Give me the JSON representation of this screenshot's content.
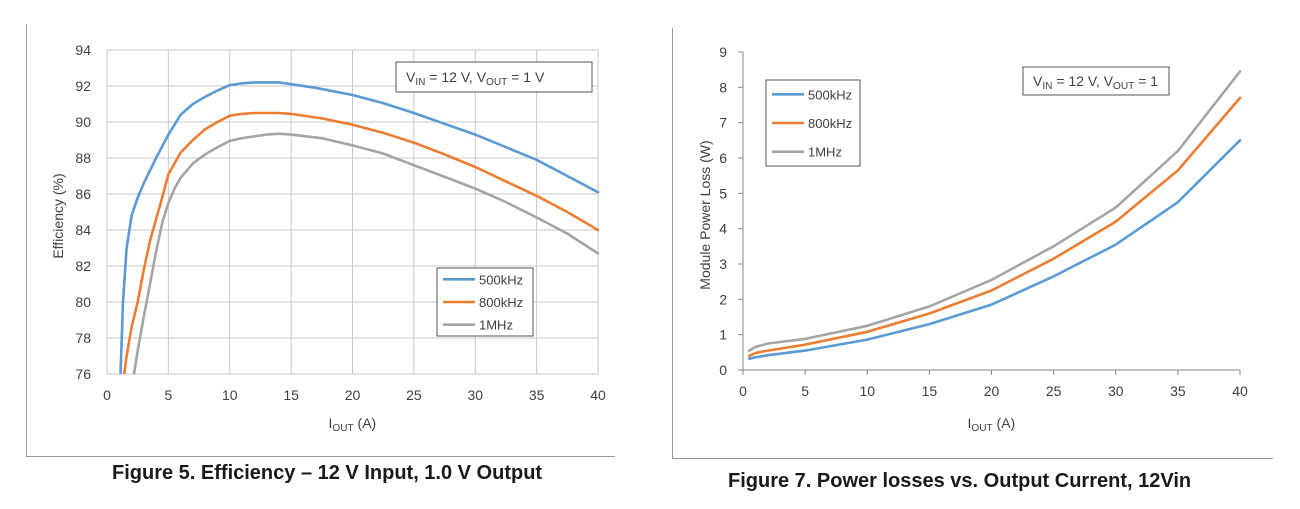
{
  "colors": {
    "series_500khz": "#5b9bd5",
    "series_800khz": "#ed7d31",
    "series_1mhz": "#a5a5a5",
    "grid": "#c8c8c8",
    "axis": "#868686",
    "text": "#404040"
  },
  "chart_data": [
    {
      "type": "line",
      "title": "",
      "caption": "Figure 5. Efficiency – 12 V Input, 1.0 V Output",
      "annotation": {
        "v": "V",
        "v_sub": "IN",
        "mid": " = 12 V, ",
        "v2": "V",
        "v2_sub": "OUT",
        "end": " = 1 V"
      },
      "xlabel": {
        "main": "I",
        "sub": "OUT",
        "unit": " (A)"
      },
      "ylabel": "Efficiency (%)",
      "xlim": [
        0,
        40
      ],
      "ylim": [
        76,
        94
      ],
      "xticks": [
        "0",
        "5",
        "10",
        "15",
        "20",
        "25",
        "30",
        "35",
        "40"
      ],
      "yticks": [
        "76",
        "78",
        "80",
        "82",
        "84",
        "86",
        "88",
        "90",
        "92",
        "94"
      ],
      "grid": true,
      "legend_position": "bottom-right",
      "series": [
        {
          "name": "500kHz",
          "x": [
            1.1,
            1.3,
            1.6,
            2.0,
            2.5,
            3.0,
            4.0,
            5.0,
            6.0,
            7.0,
            8.0,
            9.0,
            10.0,
            11.0,
            12.0,
            13.0,
            14.0,
            15.0,
            17.0,
            20.0,
            22.5,
            25.0,
            27.5,
            30.0,
            32.5,
            35.0,
            37.5,
            40.0
          ],
          "y": [
            76.0,
            80.0,
            83.0,
            84.8,
            85.8,
            86.6,
            88.0,
            89.3,
            90.4,
            91.0,
            91.4,
            91.75,
            92.05,
            92.15,
            92.2,
            92.2,
            92.2,
            92.1,
            91.9,
            91.5,
            91.05,
            90.5,
            89.9,
            89.3,
            88.6,
            87.9,
            87.0,
            86.1
          ]
        },
        {
          "name": "800kHz",
          "x": [
            1.4,
            1.6,
            2.0,
            2.5,
            3.0,
            3.5,
            4.0,
            4.5,
            5.0,
            6.0,
            7.0,
            8.0,
            9.0,
            10.0,
            11.0,
            12.0,
            13.0,
            14.0,
            15.0,
            17.5,
            20.0,
            22.5,
            25.0,
            27.5,
            30.0,
            32.5,
            35.0,
            37.5,
            40.0
          ],
          "y": [
            76.0,
            77.0,
            78.6,
            80.0,
            81.8,
            83.4,
            84.6,
            85.8,
            87.1,
            88.3,
            89.0,
            89.6,
            90.0,
            90.35,
            90.45,
            90.5,
            90.5,
            90.5,
            90.45,
            90.2,
            89.85,
            89.4,
            88.85,
            88.2,
            87.5,
            86.7,
            85.9,
            85.0,
            84.0
          ]
        },
        {
          "name": "1MHz",
          "x": [
            2.2,
            2.5,
            3.0,
            3.5,
            4.0,
            4.5,
            5.0,
            5.5,
            6.0,
            7.0,
            8.0,
            9.0,
            10.0,
            11.0,
            12.0,
            13.0,
            14.0,
            15.0,
            17.5,
            20.0,
            22.5,
            25.0,
            27.5,
            30.0,
            32.5,
            35.0,
            37.5,
            40.0
          ],
          "y": [
            76.0,
            77.3,
            79.2,
            81.0,
            82.8,
            84.4,
            85.5,
            86.3,
            86.9,
            87.7,
            88.2,
            88.6,
            88.95,
            89.1,
            89.2,
            89.3,
            89.35,
            89.3,
            89.1,
            88.7,
            88.25,
            87.6,
            86.95,
            86.3,
            85.55,
            84.7,
            83.8,
            82.7
          ]
        }
      ]
    },
    {
      "type": "line",
      "title": "",
      "caption": "Figure 7. Power losses vs. Output Current, 12Vin",
      "annotation": {
        "v": "V",
        "v_sub": "IN",
        "mid": " = 12 V, ",
        "v2": "V",
        "v2_sub": "OUT",
        "end": " = 1"
      },
      "xlabel": {
        "main": "I",
        "sub": "OUT",
        "unit": " (A)"
      },
      "ylabel": "Module Power Loss (W)",
      "xlim": [
        0,
        40
      ],
      "ylim": [
        0,
        9
      ],
      "xticks": [
        "0",
        "5",
        "10",
        "15",
        "20",
        "25",
        "30",
        "35",
        "40"
      ],
      "yticks": [
        "0",
        "1",
        "2",
        "3",
        "4",
        "5",
        "6",
        "7",
        "8",
        "9"
      ],
      "grid": false,
      "legend_position": "top-left",
      "series": [
        {
          "name": "500kHz",
          "x": [
            0.5,
            1,
            2,
            5,
            10,
            15,
            20,
            25,
            30,
            35,
            40
          ],
          "y": [
            0.32,
            0.36,
            0.42,
            0.55,
            0.86,
            1.3,
            1.85,
            2.65,
            3.55,
            4.75,
            6.5
          ]
        },
        {
          "name": "800kHz",
          "x": [
            0.5,
            1,
            2,
            5,
            10,
            15,
            20,
            25,
            30,
            35,
            40
          ],
          "y": [
            0.4,
            0.48,
            0.55,
            0.72,
            1.08,
            1.6,
            2.25,
            3.15,
            4.2,
            5.65,
            7.7
          ]
        },
        {
          "name": "1MHz",
          "x": [
            0.5,
            1,
            2,
            5,
            10,
            15,
            20,
            25,
            30,
            35,
            40
          ],
          "y": [
            0.55,
            0.65,
            0.75,
            0.88,
            1.25,
            1.8,
            2.55,
            3.5,
            4.6,
            6.2,
            8.45
          ]
        }
      ]
    }
  ]
}
